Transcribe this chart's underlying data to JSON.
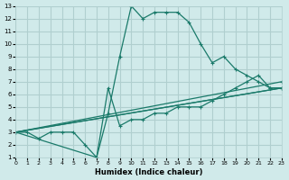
{
  "xlabel": "Humidex (Indice chaleur)",
  "ylabel": "",
  "bg_color": "#d0eaea",
  "grid_color": "#b0cfcf",
  "line_color": "#1a7a6a",
  "xlim": [
    0,
    23
  ],
  "ylim": [
    1,
    13
  ],
  "xticks": [
    0,
    1,
    2,
    3,
    4,
    5,
    6,
    7,
    8,
    9,
    10,
    11,
    12,
    13,
    14,
    15,
    16,
    17,
    18,
    19,
    20,
    21,
    22,
    23
  ],
  "yticks": [
    1,
    2,
    3,
    4,
    5,
    6,
    7,
    8,
    9,
    10,
    11,
    12,
    13
  ],
  "series": [
    {
      "x": [
        0,
        1,
        2,
        3,
        4,
        5,
        6,
        7,
        8,
        9,
        10,
        11,
        12,
        13,
        14,
        15,
        16,
        17,
        18,
        19,
        20,
        21,
        22,
        23
      ],
      "y": [
        3,
        3,
        2.5,
        3,
        3,
        3,
        2,
        1,
        4.5,
        9,
        13,
        12,
        12.5,
        12.5,
        12.5,
        11.7,
        10,
        8.5,
        9,
        8,
        7.5,
        7,
        6.5,
        6.5
      ]
    },
    {
      "x": [
        0,
        7,
        8,
        9,
        10,
        11,
        12,
        13,
        14,
        15,
        16,
        17,
        18,
        19,
        20,
        21,
        22,
        23
      ],
      "y": [
        3,
        1,
        6.5,
        3.5,
        4,
        4,
        4.5,
        4.5,
        5,
        5,
        5,
        5.5,
        6,
        6.5,
        7,
        7.5,
        6.5,
        6.5
      ]
    },
    {
      "x": [
        0,
        23
      ],
      "y": [
        3,
        6.5
      ]
    },
    {
      "x": [
        0,
        23
      ],
      "y": [
        3,
        6.5
      ]
    },
    {
      "x": [
        0,
        23
      ],
      "y": [
        3,
        7
      ]
    }
  ]
}
